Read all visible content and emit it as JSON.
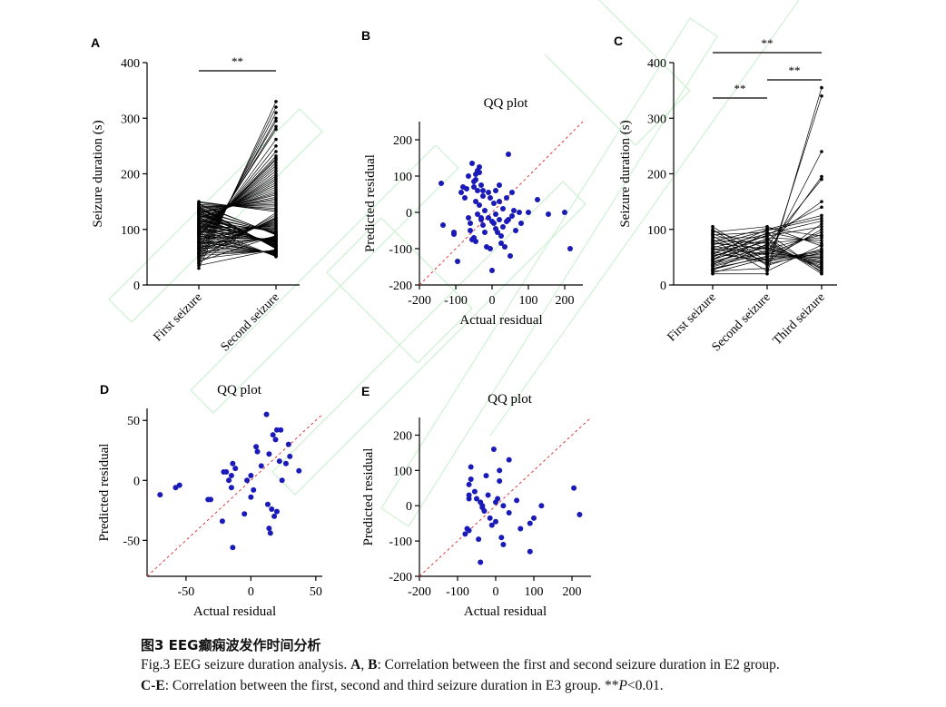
{
  "caption": {
    "title": "图3 EEG癫痫波发作时间分析",
    "line1": [
      "Fig.3 EEG seizure duration analysis. ",
      "A",
      ", ",
      "B",
      ": Correlation between the first and second seizure duration in E2 group."
    ],
    "line2": [
      "C-E",
      ": Correlation between the first, second and third seizure duration in E3 group. **",
      "P",
      "<0.01."
    ]
  },
  "chart_data": [
    {
      "panel": "A",
      "type": "line",
      "title": "",
      "xlabel": "",
      "ylabel": "Seizure duration (s)",
      "categories": [
        "First seizure",
        "Second seizure"
      ],
      "ylim": [
        0,
        400
      ],
      "yticks": [
        0,
        100,
        200,
        300,
        400
      ],
      "significance": [
        {
          "from": "First seizure",
          "to": "Second seizure",
          "label": "**"
        }
      ],
      "pairs": [
        [
          30,
          330
        ],
        [
          38,
          320
        ],
        [
          45,
          310
        ],
        [
          50,
          300
        ],
        [
          55,
          295
        ],
        [
          60,
          285
        ],
        [
          65,
          280
        ],
        [
          70,
          262
        ],
        [
          75,
          250
        ],
        [
          80,
          240
        ],
        [
          85,
          232
        ],
        [
          88,
          228
        ],
        [
          90,
          225
        ],
        [
          92,
          220
        ],
        [
          95,
          215
        ],
        [
          98,
          210
        ],
        [
          100,
          205
        ],
        [
          102,
          200
        ],
        [
          105,
          196
        ],
        [
          108,
          192
        ],
        [
          110,
          188
        ],
        [
          112,
          184
        ],
        [
          115,
          180
        ],
        [
          118,
          176
        ],
        [
          120,
          172
        ],
        [
          122,
          168
        ],
        [
          125,
          165
        ],
        [
          128,
          162
        ],
        [
          130,
          158
        ],
        [
          132,
          155
        ],
        [
          135,
          152
        ],
        [
          138,
          148
        ],
        [
          140,
          145
        ],
        [
          142,
          142
        ],
        [
          145,
          138
        ],
        [
          148,
          135
        ],
        [
          150,
          132
        ],
        [
          40,
          130
        ],
        [
          48,
          126
        ],
        [
          52,
          122
        ],
        [
          58,
          120
        ],
        [
          62,
          118
        ],
        [
          66,
          116
        ],
        [
          72,
          114
        ],
        [
          78,
          112
        ],
        [
          82,
          110
        ],
        [
          86,
          108
        ],
        [
          94,
          106
        ],
        [
          96,
          104
        ],
        [
          104,
          102
        ],
        [
          106,
          100
        ],
        [
          114,
          98
        ],
        [
          116,
          96
        ],
        [
          124,
          95
        ],
        [
          126,
          94
        ],
        [
          134,
          93
        ],
        [
          136,
          92
        ],
        [
          144,
          91
        ],
        [
          146,
          90
        ],
        [
          42,
          89
        ],
        [
          56,
          88
        ],
        [
          64,
          87
        ],
        [
          68,
          86
        ],
        [
          74,
          85
        ],
        [
          76,
          84
        ],
        [
          84,
          83
        ],
        [
          87,
          82
        ],
        [
          91,
          81
        ],
        [
          97,
          80
        ],
        [
          101,
          79
        ],
        [
          103,
          78
        ],
        [
          109,
          77
        ],
        [
          111,
          76
        ],
        [
          113,
          75
        ],
        [
          117,
          74
        ],
        [
          119,
          73
        ],
        [
          121,
          72
        ],
        [
          127,
          71
        ],
        [
          129,
          70
        ],
        [
          131,
          69
        ],
        [
          133,
          68
        ],
        [
          137,
          67
        ],
        [
          139,
          66
        ],
        [
          141,
          65
        ],
        [
          35,
          64
        ],
        [
          47,
          63
        ],
        [
          53,
          62
        ],
        [
          57,
          61
        ],
        [
          61,
          60
        ],
        [
          67,
          59
        ],
        [
          71,
          58
        ],
        [
          77,
          57
        ],
        [
          79,
          56
        ],
        [
          83,
          55
        ],
        [
          89,
          54
        ],
        [
          93,
          53
        ],
        [
          99,
          52
        ],
        [
          107,
          51
        ]
      ]
    },
    {
      "panel": "B",
      "type": "scatter",
      "title": "QQ plot",
      "xlabel": "Actual residual",
      "ylabel": "Predicted residual",
      "xlim": [
        -200,
        250
      ],
      "ylim": [
        -200,
        250
      ],
      "xticks": [
        -200,
        -100,
        0,
        100,
        200
      ],
      "yticks": [
        -200,
        -100,
        0,
        100,
        200
      ],
      "reference_line": "y = x",
      "points": [
        [
          -140,
          80
        ],
        [
          -135,
          -35
        ],
        [
          -105,
          -55
        ],
        [
          -105,
          -60
        ],
        [
          -95,
          -135
        ],
        [
          -85,
          55
        ],
        [
          -80,
          70
        ],
        [
          -75,
          40
        ],
        [
          -70,
          65
        ],
        [
          -65,
          100
        ],
        [
          -65,
          -15
        ],
        [
          -60,
          -30
        ],
        [
          -60,
          -50
        ],
        [
          -55,
          135
        ],
        [
          -55,
          -75
        ],
        [
          -50,
          85
        ],
        [
          -50,
          70
        ],
        [
          -50,
          -70
        ],
        [
          -45,
          105
        ],
        [
          -45,
          90
        ],
        [
          -45,
          30
        ],
        [
          -45,
          -80
        ],
        [
          -40,
          115
        ],
        [
          -40,
          60
        ],
        [
          -40,
          -5
        ],
        [
          -35,
          125
        ],
        [
          -35,
          110
        ],
        [
          -35,
          20
        ],
        [
          -30,
          75
        ],
        [
          -30,
          -15
        ],
        [
          -30,
          -20
        ],
        [
          -25,
          60
        ],
        [
          -25,
          45
        ],
        [
          -25,
          -35
        ],
        [
          -20,
          5
        ],
        [
          -20,
          -55
        ],
        [
          -15,
          -95
        ],
        [
          -10,
          55
        ],
        [
          -10,
          -15
        ],
        [
          -5,
          40
        ],
        [
          -5,
          -100
        ],
        [
          0,
          -160
        ],
        [
          0,
          -25
        ],
        [
          5,
          25
        ],
        [
          5,
          -30
        ],
        [
          10,
          60
        ],
        [
          10,
          -5
        ],
        [
          10,
          -45
        ],
        [
          15,
          -55
        ],
        [
          20,
          75
        ],
        [
          20,
          30
        ],
        [
          20,
          -20
        ],
        [
          25,
          -65
        ],
        [
          25,
          -85
        ],
        [
          30,
          10
        ],
        [
          30,
          -40
        ],
        [
          35,
          -95
        ],
        [
          40,
          40
        ],
        [
          40,
          -25
        ],
        [
          45,
          160
        ],
        [
          45,
          -20
        ],
        [
          50,
          -120
        ],
        [
          55,
          55
        ],
        [
          55,
          -10
        ],
        [
          60,
          5
        ],
        [
          65,
          -50
        ],
        [
          75,
          0
        ],
        [
          80,
          -30
        ],
        [
          100,
          0
        ],
        [
          125,
          35
        ],
        [
          155,
          -5
        ],
        [
          200,
          0
        ],
        [
          215,
          -100
        ]
      ]
    },
    {
      "panel": "C",
      "type": "line",
      "title": "",
      "xlabel": "",
      "ylabel": "Seizure duration (s)",
      "categories": [
        "First seizure",
        "Second seizure",
        "Third seizure"
      ],
      "ylim": [
        0,
        400
      ],
      "yticks": [
        0,
        100,
        200,
        300,
        400
      ],
      "significance": [
        {
          "from": "First seizure",
          "to": "Second seizure",
          "label": "**"
        },
        {
          "from": "Second seizure",
          "to": "Third seizure",
          "label": "**"
        },
        {
          "from": "First seizure",
          "to": "Third seizure",
          "label": "**"
        }
      ],
      "triples": [
        [
          20,
          20,
          355
        ],
        [
          25,
          30,
          340
        ],
        [
          30,
          50,
          240
        ],
        [
          35,
          60,
          195
        ],
        [
          40,
          70,
          190
        ],
        [
          45,
          80,
          150
        ],
        [
          50,
          90,
          140
        ],
        [
          55,
          100,
          125
        ],
        [
          60,
          40,
          110
        ],
        [
          65,
          45,
          100
        ],
        [
          70,
          55,
          95
        ],
        [
          75,
          65,
          90
        ],
        [
          80,
          75,
          85
        ],
        [
          85,
          85,
          80
        ],
        [
          90,
          95,
          75
        ],
        [
          95,
          105,
          70
        ],
        [
          100,
          35,
          65
        ],
        [
          105,
          42,
          60
        ],
        [
          22,
          48,
          55
        ],
        [
          28,
          52,
          50
        ],
        [
          33,
          58,
          45
        ],
        [
          38,
          62,
          40
        ],
        [
          42,
          68,
          35
        ],
        [
          47,
          72,
          30
        ],
        [
          52,
          78,
          25
        ],
        [
          58,
          82,
          20
        ],
        [
          62,
          88,
          105
        ],
        [
          67,
          92,
          115
        ],
        [
          72,
          98,
          120
        ],
        [
          78,
          102,
          88
        ],
        [
          82,
          25,
          72
        ],
        [
          88,
          38,
          58
        ],
        [
          92,
          57,
          48
        ],
        [
          97,
          66,
          38
        ],
        [
          26,
          74,
          32
        ],
        [
          36,
          84,
          28
        ],
        [
          46,
          94,
          22
        ],
        [
          56,
          44,
          62
        ],
        [
          66,
          54,
          52
        ],
        [
          76,
          64,
          42
        ]
      ]
    },
    {
      "panel": "D",
      "type": "scatter",
      "title": "QQ plot",
      "xlabel": "Actual residual",
      "ylabel": "Predicted residual",
      "xlim": [
        -80,
        55
      ],
      "ylim": [
        -80,
        60
      ],
      "xticks": [
        -50,
        0,
        50
      ],
      "yticks": [
        -50,
        0,
        50
      ],
      "reference_line": "y = x",
      "points": [
        [
          -70,
          -12
        ],
        [
          -58,
          -6
        ],
        [
          -55,
          -4
        ],
        [
          -33,
          -16
        ],
        [
          -31,
          -16
        ],
        [
          -22,
          -34
        ],
        [
          -21,
          7
        ],
        [
          -19,
          7
        ],
        [
          -17,
          0
        ],
        [
          -15,
          -6
        ],
        [
          -15,
          4
        ],
        [
          -14,
          -56
        ],
        [
          -14,
          14
        ],
        [
          -12,
          10
        ],
        [
          -5,
          -28
        ],
        [
          -3,
          0
        ],
        [
          0,
          4
        ],
        [
          0,
          -14
        ],
        [
          2,
          -8
        ],
        [
          4,
          28
        ],
        [
          5,
          24
        ],
        [
          8,
          12
        ],
        [
          12,
          55
        ],
        [
          13,
          -20
        ],
        [
          14,
          22
        ],
        [
          14,
          -40
        ],
        [
          15,
          -44
        ],
        [
          16,
          -24
        ],
        [
          17,
          38
        ],
        [
          18,
          -30
        ],
        [
          19,
          34
        ],
        [
          20,
          -26
        ],
        [
          20,
          42
        ],
        [
          22,
          16
        ],
        [
          23,
          42
        ],
        [
          24,
          0
        ],
        [
          27,
          14
        ],
        [
          29,
          30
        ],
        [
          30,
          20
        ],
        [
          37,
          8
        ]
      ]
    },
    {
      "panel": "E",
      "type": "scatter",
      "title": "QQ plot",
      "xlabel": "Actual residual",
      "ylabel": "Predicted residual",
      "xlim": [
        -200,
        250
      ],
      "ylim": [
        -200,
        250
      ],
      "xticks": [
        -200,
        -100,
        0,
        100,
        200
      ],
      "yticks": [
        -200,
        -100,
        0,
        100,
        200
      ],
      "reference_line": "y = x",
      "points": [
        [
          -80,
          -80
        ],
        [
          -75,
          -65
        ],
        [
          -70,
          -70
        ],
        [
          -70,
          20
        ],
        [
          -70,
          30
        ],
        [
          -70,
          60
        ],
        [
          -65,
          75
        ],
        [
          -65,
          110
        ],
        [
          -55,
          40
        ],
        [
          -50,
          20
        ],
        [
          -45,
          -95
        ],
        [
          -40,
          10
        ],
        [
          -40,
          -160
        ],
        [
          -35,
          0
        ],
        [
          -35,
          -5
        ],
        [
          -30,
          -15
        ],
        [
          -25,
          85
        ],
        [
          -20,
          30
        ],
        [
          -15,
          -35
        ],
        [
          -10,
          -55
        ],
        [
          -5,
          160
        ],
        [
          0,
          -45
        ],
        [
          0,
          10
        ],
        [
          5,
          20
        ],
        [
          10,
          100
        ],
        [
          10,
          70
        ],
        [
          15,
          -90
        ],
        [
          20,
          0
        ],
        [
          20,
          -110
        ],
        [
          35,
          130
        ],
        [
          35,
          -20
        ],
        [
          55,
          15
        ],
        [
          65,
          -65
        ],
        [
          90,
          -50
        ],
        [
          90,
          -130
        ],
        [
          100,
          -35
        ],
        [
          120,
          0
        ],
        [
          205,
          50
        ],
        [
          220,
          -25
        ]
      ]
    }
  ]
}
